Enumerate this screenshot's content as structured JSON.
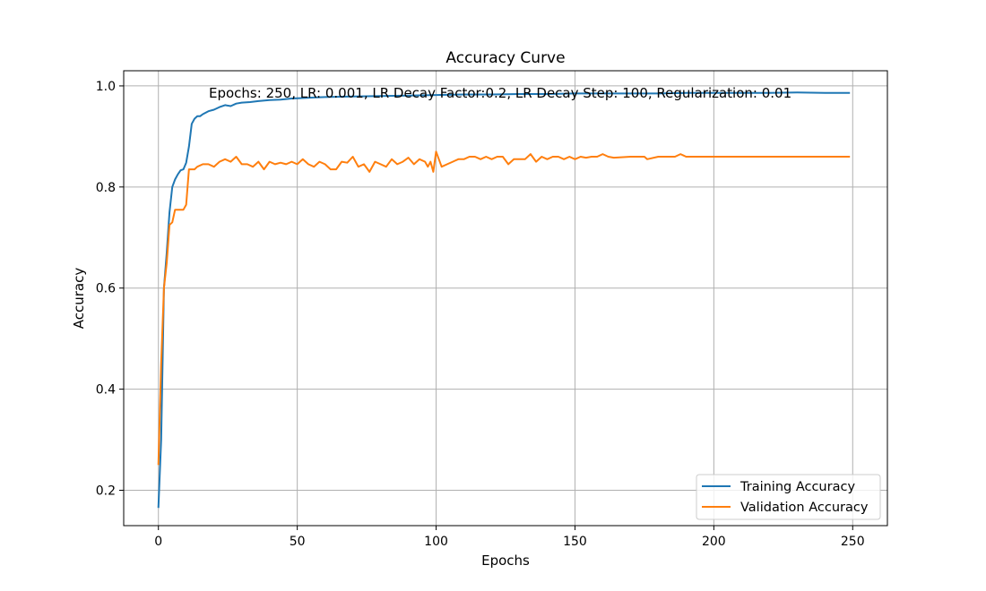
{
  "chart_data": {
    "type": "line",
    "title": "Accuracy Curve",
    "xlabel": "Epochs",
    "ylabel": "Accuracy",
    "annotation": "Epochs: 250, LR: 0.001, LR Decay Factor:0.2, LR Decay Step: 100, Regularization: 0.01",
    "xlim": [
      -12.5,
      262.5
    ],
    "ylim": [
      0.13,
      1.03
    ],
    "xticks": [
      0,
      50,
      100,
      150,
      200,
      250
    ],
    "yticks": [
      0.2,
      0.4,
      0.6,
      0.8,
      1.0
    ],
    "xtick_labels": [
      "0",
      "50",
      "100",
      "150",
      "200",
      "250"
    ],
    "ytick_labels": [
      "0.2",
      "0.4",
      "0.6",
      "0.8",
      "1.0"
    ],
    "grid": true,
    "legend_position": "lower-right",
    "series": [
      {
        "name": "Training Accuracy",
        "color": "#1f77b4",
        "x": [
          0,
          1,
          2,
          3,
          4,
          5,
          6,
          7,
          8,
          9,
          10,
          11,
          12,
          13,
          14,
          15,
          16,
          18,
          20,
          22,
          24,
          26,
          28,
          30,
          33,
          36,
          40,
          44,
          48,
          52,
          56,
          60,
          70,
          80,
          90,
          100,
          110,
          120,
          130,
          140,
          150,
          160,
          170,
          180,
          190,
          200,
          210,
          220,
          230,
          240,
          249
        ],
        "y": [
          0.165,
          0.3,
          0.6,
          0.67,
          0.75,
          0.8,
          0.815,
          0.825,
          0.833,
          0.835,
          0.848,
          0.88,
          0.925,
          0.935,
          0.94,
          0.94,
          0.944,
          0.95,
          0.953,
          0.958,
          0.962,
          0.96,
          0.965,
          0.967,
          0.968,
          0.97,
          0.972,
          0.973,
          0.975,
          0.976,
          0.977,
          0.978,
          0.979,
          0.98,
          0.981,
          0.982,
          0.983,
          0.983,
          0.984,
          0.984,
          0.985,
          0.985,
          0.985,
          0.985,
          0.986,
          0.986,
          0.986,
          0.986,
          0.987,
          0.986,
          0.986
        ]
      },
      {
        "name": "Validation Accuracy",
        "color": "#ff7f0e",
        "x": [
          0,
          1,
          2,
          3,
          4,
          5,
          6,
          7,
          8,
          9,
          10,
          11,
          12,
          13,
          14,
          16,
          18,
          20,
          22,
          24,
          26,
          28,
          30,
          32,
          34,
          36,
          38,
          40,
          42,
          44,
          46,
          48,
          50,
          52,
          54,
          56,
          58,
          60,
          62,
          64,
          66,
          68,
          70,
          72,
          74,
          76,
          78,
          80,
          82,
          84,
          86,
          88,
          90,
          92,
          94,
          96,
          97,
          98,
          99,
          100,
          102,
          104,
          106,
          108,
          110,
          112,
          114,
          116,
          118,
          120,
          122,
          124,
          126,
          128,
          130,
          132,
          134,
          136,
          138,
          140,
          142,
          144,
          146,
          148,
          150,
          152,
          154,
          156,
          158,
          160,
          162,
          164,
          170,
          175,
          176,
          180,
          186,
          188,
          190,
          200,
          210,
          220,
          230,
          240,
          249
        ],
        "y": [
          0.25,
          0.45,
          0.6,
          0.65,
          0.725,
          0.73,
          0.755,
          0.755,
          0.755,
          0.755,
          0.765,
          0.835,
          0.835,
          0.835,
          0.84,
          0.845,
          0.845,
          0.84,
          0.85,
          0.855,
          0.85,
          0.86,
          0.845,
          0.845,
          0.84,
          0.85,
          0.835,
          0.85,
          0.845,
          0.848,
          0.845,
          0.85,
          0.845,
          0.855,
          0.845,
          0.84,
          0.85,
          0.845,
          0.835,
          0.835,
          0.85,
          0.848,
          0.86,
          0.84,
          0.845,
          0.83,
          0.85,
          0.845,
          0.84,
          0.855,
          0.845,
          0.85,
          0.858,
          0.845,
          0.855,
          0.85,
          0.84,
          0.85,
          0.83,
          0.87,
          0.84,
          0.845,
          0.85,
          0.855,
          0.855,
          0.86,
          0.86,
          0.855,
          0.86,
          0.855,
          0.86,
          0.86,
          0.845,
          0.855,
          0.855,
          0.855,
          0.865,
          0.85,
          0.86,
          0.855,
          0.86,
          0.86,
          0.855,
          0.86,
          0.855,
          0.86,
          0.858,
          0.86,
          0.86,
          0.865,
          0.86,
          0.858,
          0.86,
          0.86,
          0.855,
          0.86,
          0.86,
          0.865,
          0.86,
          0.86,
          0.86,
          0.86,
          0.86,
          0.86,
          0.86
        ]
      }
    ]
  }
}
